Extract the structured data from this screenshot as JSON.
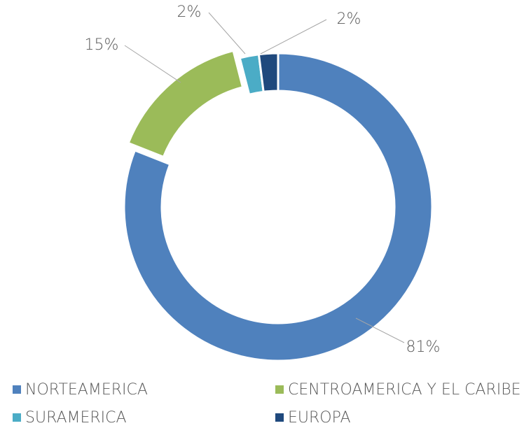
{
  "chart_data": {
    "type": "donut",
    "categories": [
      "NORTEAMERICA",
      "CENTROAMERICA Y EL CARIBE",
      "SURAMERICA",
      "EUROPA"
    ],
    "values": [
      81,
      15,
      2,
      2
    ],
    "value_labels": [
      "81%",
      "15%",
      "2%",
      "2%"
    ],
    "colors": [
      "#4f81bd",
      "#9bbb59",
      "#4bacc6",
      "#1f497d"
    ],
    "exploded": [
      false,
      true,
      false,
      false
    ]
  }
}
